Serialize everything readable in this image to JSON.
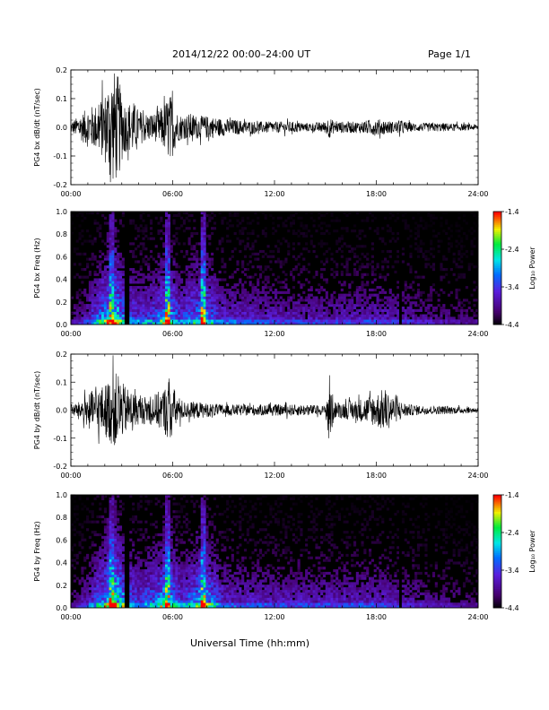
{
  "header": {
    "title": "2014/12/22  00:00–24:00 UT",
    "page": "Page 1/1"
  },
  "footer": {
    "xlabel": "Universal Time (hh:mm)"
  },
  "chart_data": [
    {
      "type": "line",
      "ylabel": "PG4 bx dB/dt (nT/sec)",
      "xlim": [
        0,
        24
      ],
      "ylim": [
        -0.2,
        0.2
      ],
      "xticks": [
        "00:00",
        "06:00",
        "12:00",
        "18:00",
        "24:00"
      ],
      "yticks": [
        "-0.2",
        "-0.1",
        "0.0",
        "0.1",
        "0.2"
      ],
      "envelope": {
        "x": [
          0,
          0.5,
          1,
          1.5,
          2,
          2.3,
          2.6,
          2.8,
          3,
          3.3,
          3.6,
          4,
          4.5,
          5,
          5.5,
          5.8,
          6,
          6.3,
          6.7,
          7,
          7.5,
          8,
          9,
          10,
          11,
          12,
          13,
          14,
          15,
          15.2,
          15.5,
          16,
          17,
          18,
          18.5,
          19,
          19.5,
          20,
          21,
          22,
          23,
          24
        ],
        "amp": [
          0.02,
          0.04,
          0.07,
          0.08,
          0.12,
          0.19,
          0.2,
          0.18,
          0.12,
          0.08,
          0.1,
          0.06,
          0.05,
          0.05,
          0.08,
          0.12,
          0.1,
          0.05,
          0.04,
          0.05,
          0.04,
          0.04,
          0.03,
          0.025,
          0.02,
          0.02,
          0.02,
          0.015,
          0.02,
          0.04,
          0.02,
          0.02,
          0.02,
          0.03,
          0.025,
          0.02,
          0.025,
          0.015,
          0.015,
          0.015,
          0.012,
          0.01
        ]
      }
    },
    {
      "type": "heatmap",
      "ylabel": "PG4 bx Freq (Hz)",
      "colorbar_label": "Log₁₀ Power",
      "xlim": [
        0,
        24
      ],
      "ylim": [
        0,
        1.0
      ],
      "xticks": [
        "00:00",
        "06:00",
        "12:00",
        "18:00",
        "24:00"
      ],
      "yticks": [
        "0.0",
        "0.2",
        "0.4",
        "0.6",
        "0.8",
        "1.0"
      ],
      "colorbar_ticks": [
        "-1.4",
        "-2.4",
        "-3.4",
        "-4.4"
      ],
      "power_range": [
        -4.4,
        -1.4
      ],
      "bright_times": [
        2.4,
        5.7,
        7.8
      ],
      "data_gaps": [
        3.3,
        19.4
      ],
      "activity": {
        "x": [
          0,
          1,
          2,
          2.5,
          3,
          4,
          5,
          5.7,
          6.5,
          7.8,
          9,
          12,
          15,
          18,
          21,
          24
        ],
        "level": [
          0.15,
          0.3,
          0.6,
          0.8,
          0.55,
          0.4,
          0.45,
          0.65,
          0.4,
          0.6,
          0.35,
          0.3,
          0.28,
          0.3,
          0.22,
          0.15
        ]
      }
    },
    {
      "type": "line",
      "ylabel": "PG4 by dB/dt (nT/sec)",
      "xlim": [
        0,
        24
      ],
      "ylim": [
        -0.2,
        0.2
      ],
      "xticks": [
        "00:00",
        "06:00",
        "12:00",
        "18:00",
        "24:00"
      ],
      "yticks": [
        "-0.2",
        "-0.1",
        "0.0",
        "0.1",
        "0.2"
      ],
      "envelope": {
        "x": [
          0,
          0.5,
          1,
          1.5,
          2,
          2.3,
          2.6,
          2.8,
          3,
          3.3,
          3.6,
          4,
          4.5,
          5,
          5.5,
          5.8,
          6,
          6.3,
          6.7,
          7,
          7.5,
          8,
          9,
          10,
          11,
          12,
          13,
          14,
          15,
          15.2,
          15.5,
          16,
          17,
          18,
          18.5,
          19,
          19.5,
          20,
          21,
          22,
          23,
          24
        ],
        "amp": [
          0.02,
          0.03,
          0.06,
          0.08,
          0.09,
          0.12,
          0.13,
          0.14,
          0.1,
          0.08,
          0.07,
          0.05,
          0.05,
          0.06,
          0.08,
          0.12,
          0.09,
          0.05,
          0.03,
          0.03,
          0.03,
          0.025,
          0.02,
          0.02,
          0.02,
          0.02,
          0.02,
          0.02,
          0.015,
          0.15,
          0.03,
          0.03,
          0.04,
          0.06,
          0.08,
          0.05,
          0.03,
          0.02,
          0.015,
          0.015,
          0.012,
          0.01
        ]
      }
    },
    {
      "type": "heatmap",
      "ylabel": "PG4 by Freq (Hz)",
      "colorbar_label": "Log₁₀ Power",
      "xlim": [
        0,
        24
      ],
      "ylim": [
        0,
        1.0
      ],
      "xticks": [
        "00:00",
        "06:00",
        "12:00",
        "18:00",
        "24:00"
      ],
      "yticks": [
        "0.0",
        "0.2",
        "0.4",
        "0.6",
        "0.8",
        "1.0"
      ],
      "colorbar_ticks": [
        "-1.4",
        "-2.4",
        "-3.4",
        "-4.4"
      ],
      "power_range": [
        -4.4,
        -1.4
      ],
      "bright_times": [
        2.4,
        5.7,
        7.8
      ],
      "data_gaps": [
        3.3,
        19.4
      ],
      "activity": {
        "x": [
          0,
          1,
          2,
          2.5,
          3,
          4,
          5,
          5.7,
          6.5,
          7.8,
          9,
          12,
          15,
          18,
          21,
          24
        ],
        "level": [
          0.15,
          0.3,
          0.6,
          0.85,
          0.6,
          0.4,
          0.5,
          0.7,
          0.4,
          0.65,
          0.35,
          0.3,
          0.3,
          0.32,
          0.22,
          0.15
        ]
      }
    }
  ]
}
